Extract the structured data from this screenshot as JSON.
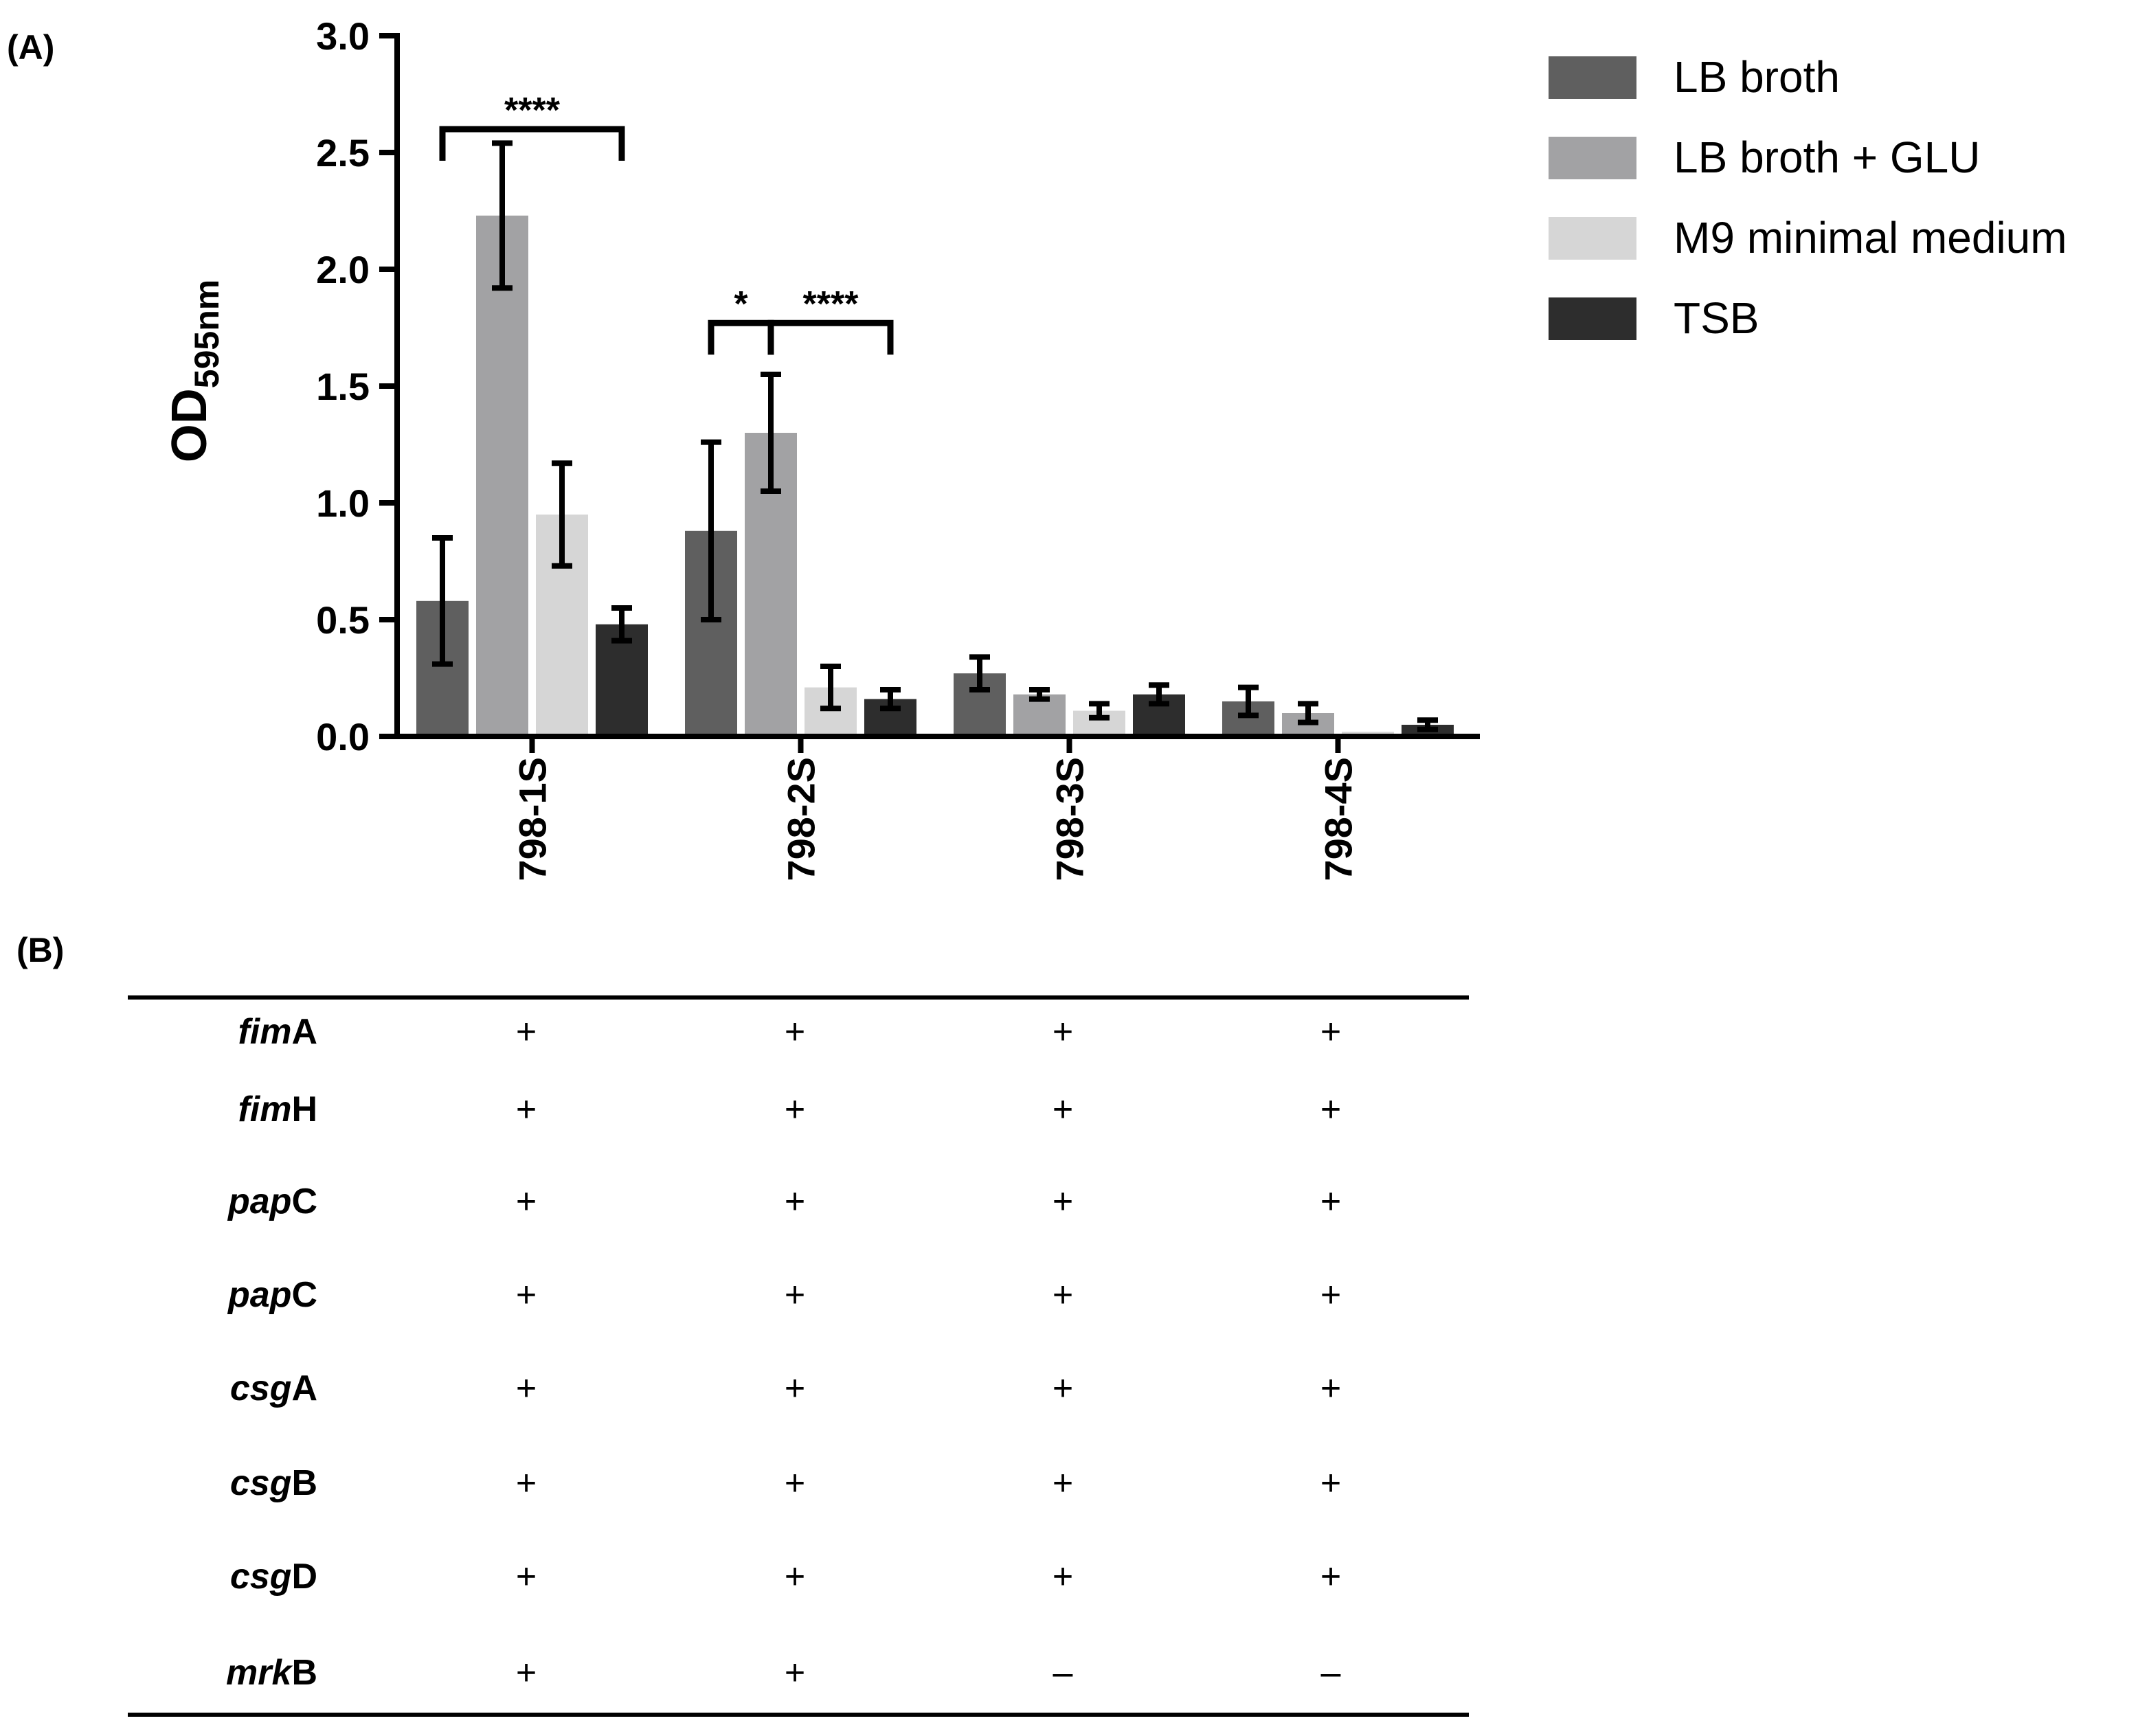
{
  "panel_a_label": "(A)",
  "panel_b_label": "(B)",
  "colors": {
    "LB broth": "#5f5f5f",
    "LB broth + GLU": "#a2a2a4",
    "M9 minimal medium": "#d6d6d6",
    "TSB": "#2d2d2d",
    "axis": "#000000"
  },
  "chart_data": {
    "type": "bar",
    "title": "",
    "xlabel": "",
    "ylabel_main": "OD",
    "ylabel_sub": "595nm",
    "ylim": [
      0,
      3.0
    ],
    "yticks": [
      "0.0",
      "0.5",
      "1.0",
      "1.5",
      "2.0",
      "2.5",
      "3.0"
    ],
    "categories": [
      "798-1S",
      "798-2S",
      "798-3S",
      "798-4S"
    ],
    "legend_position": "top-right",
    "series": [
      {
        "name": "LB broth",
        "values": [
          0.58,
          0.88,
          0.27,
          0.15
        ],
        "errors": [
          0.27,
          0.38,
          0.07,
          0.06
        ]
      },
      {
        "name": "LB broth + GLU",
        "values": [
          2.23,
          1.3,
          0.18,
          0.1
        ],
        "errors": [
          0.31,
          0.25,
          0.02,
          0.04
        ]
      },
      {
        "name": "M9 minimal medium",
        "values": [
          0.95,
          0.21,
          0.11,
          0.02
        ],
        "errors": [
          0.22,
          0.09,
          0.03,
          0.0
        ]
      },
      {
        "name": "TSB",
        "values": [
          0.48,
          0.16,
          0.18,
          0.05
        ],
        "errors": [
          0.07,
          0.04,
          0.04,
          0.02
        ]
      }
    ],
    "significance": [
      {
        "label": "****",
        "category": "798-1S",
        "from_series": 0,
        "to_series": 3,
        "level": 2.6
      },
      {
        "label": "*",
        "category": "798-2S",
        "from_series": 0,
        "to_series": 1,
        "level": 1.77
      },
      {
        "label": "****",
        "category": "798-2S",
        "from_series": 1,
        "to_series": 3,
        "level": 1.77
      }
    ]
  },
  "table": {
    "columns": [
      "798-1S",
      "798-2S",
      "798-3S",
      "798-4S"
    ],
    "rows": [
      {
        "italic": "fim",
        "suffix": "A",
        "values": [
          "+",
          "+",
          "+",
          "+"
        ]
      },
      {
        "italic": "fim",
        "suffix": "H",
        "values": [
          "+",
          "+",
          "+",
          "+"
        ]
      },
      {
        "italic": "pap",
        "suffix": "C",
        "values": [
          "+",
          "+",
          "+",
          "+"
        ]
      },
      {
        "italic": "pap",
        "suffix": "C",
        "values": [
          "+",
          "+",
          "+",
          "+"
        ]
      },
      {
        "italic": "csg",
        "suffix": "A",
        "values": [
          "+",
          "+",
          "+",
          "+"
        ]
      },
      {
        "italic": "csg",
        "suffix": "B",
        "values": [
          "+",
          "+",
          "+",
          "+"
        ]
      },
      {
        "italic": "csg",
        "suffix": "D",
        "values": [
          "+",
          "+",
          "+",
          "+"
        ]
      },
      {
        "italic": "mrk",
        "suffix": "B",
        "values": [
          "+",
          "+",
          "–",
          "–"
        ]
      }
    ]
  }
}
